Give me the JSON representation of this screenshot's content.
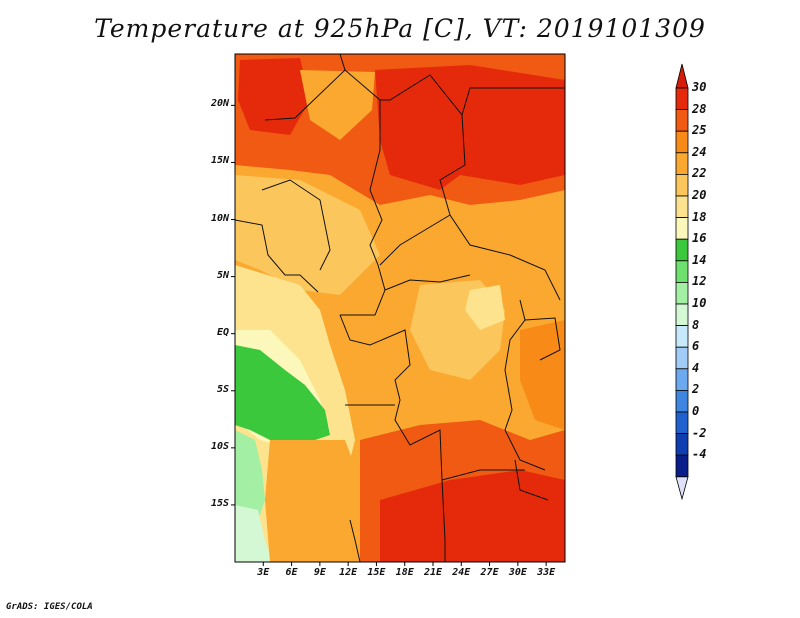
{
  "title": "Temperature at 925hPa [C], VT: 2019101309",
  "credit": "GrADS: IGES/COLA",
  "chart_data": {
    "type": "heatmap",
    "title": "Temperature at 925hPa [C], VT: 2019101309",
    "variable": "Temperature at 925hPa",
    "units": "C",
    "valid_time": "2019101309",
    "lon_range": [
      0,
      35
    ],
    "lat_range": [
      -20,
      24.5
    ],
    "y_ticks": [
      {
        "lat": 20,
        "label": "20N"
      },
      {
        "lat": 15,
        "label": "15N"
      },
      {
        "lat": 10,
        "label": "10N"
      },
      {
        "lat": 5,
        "label": "5N"
      },
      {
        "lat": 0,
        "label": "EQ"
      },
      {
        "lat": -5,
        "label": "5S"
      },
      {
        "lat": -10,
        "label": "10S"
      },
      {
        "lat": -15,
        "label": "15S"
      }
    ],
    "x_ticks": [
      {
        "lon": 3,
        "label": "3E"
      },
      {
        "lon": 6,
        "label": "6E"
      },
      {
        "lon": 9,
        "label": "9E"
      },
      {
        "lon": 12,
        "label": "12E"
      },
      {
        "lon": 15,
        "label": "15E"
      },
      {
        "lon": 18,
        "label": "18E"
      },
      {
        "lon": 21,
        "label": "21E"
      },
      {
        "lon": 24,
        "label": "24E"
      },
      {
        "lon": 27,
        "label": "27E"
      },
      {
        "lon": 30,
        "label": "30E"
      },
      {
        "lon": 33,
        "label": "33E"
      }
    ],
    "colorbar": {
      "levels": [
        30,
        28,
        25,
        24,
        22,
        20,
        18,
        16,
        14,
        12,
        10,
        8,
        6,
        4,
        2,
        0,
        -2,
        -4
      ],
      "colors": [
        "#e52a0c",
        "#f05a12",
        "#f88a18",
        "#faa830",
        "#fbc65c",
        "#fde38e",
        "#fcf8bc",
        "#3cc83c",
        "#6de06d",
        "#a3efa3",
        "#d4f8d4",
        "#c8e8fb",
        "#a0ccf7",
        "#6ca9ee",
        "#3f86e0",
        "#1f62cf",
        "#0e3eb0",
        "#0a1e8a"
      ],
      "over_color": "#d81c0a",
      "under_color": "#e0e0f8"
    }
  }
}
